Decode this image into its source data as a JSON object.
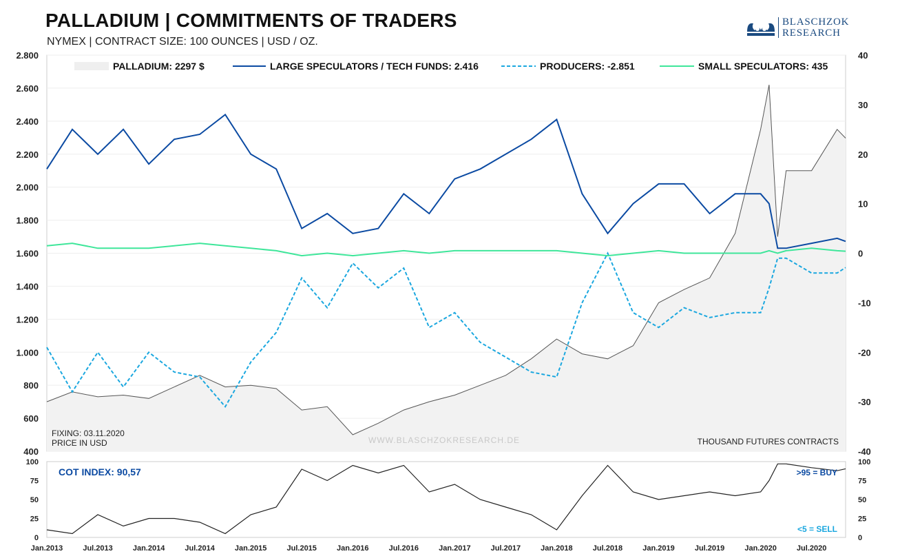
{
  "header": {
    "title": "PALLADIUM | COMMITMENTS OF TRADERS",
    "subtitle": "NYMEX | CONTRACT SIZE: 100 OUNCES | USD / OZ.",
    "logo_line1": "BLASCHZOK",
    "logo_line2": "RESEARCH"
  },
  "notes": {
    "fixing": "FIXING: 03.11.2020",
    "price_unit": "PRICE IN USD",
    "watermark": "WWW.BLASCHZOKRESEARCH.DE",
    "right_unit": "THOUSAND  FUTURES  CONTRACTS",
    "cot_index": "COT INDEX: 90,57",
    "buy_signal": ">95 = BUY",
    "sell_signal": "<5 = SELL"
  },
  "colors": {
    "price_line": "#555555",
    "price_fill": "#f2f2f2",
    "large_speculators": "#0b4aa2",
    "producers": "#1aa7df",
    "small_speculators": "#3ee69a",
    "cot_line": "#222222",
    "buy_text": "#0b4aa2",
    "sell_text": "#1aa7df"
  },
  "chart_data": [
    {
      "type": "line",
      "x_range": [
        "2013-01",
        "2020-11"
      ],
      "x_ticks": [
        "Jan.2013",
        "Jul.2013",
        "Jan.2014",
        "Jul.2014",
        "Jan.2015",
        "Jul.2015",
        "Jan.2016",
        "Jul.2016",
        "Jan.2017",
        "Jul.2017",
        "Jan.2018",
        "Jul.2018",
        "Jan.2019",
        "Jul.2019",
        "Jan.2020",
        "Jul.2020"
      ],
      "left_axis": {
        "range": [
          400,
          2800
        ],
        "ticks": [
          "400",
          "600",
          "800",
          "1.000",
          "1.200",
          "1.400",
          "1.600",
          "1.800",
          "2.000",
          "2.200",
          "2.400",
          "2.600",
          "2.800"
        ]
      },
      "right_axis": {
        "range": [
          -40,
          40
        ],
        "ticks": [
          "-40",
          "-30",
          "-20",
          "-10",
          "0",
          "10",
          "20",
          "30",
          "40"
        ]
      },
      "series": [
        {
          "name": "PALLADIUM: 2297 $",
          "axis": "left",
          "style": "area",
          "points": [
            [
              "2013-01",
              700
            ],
            [
              "2013-04",
              760
            ],
            [
              "2013-07",
              730
            ],
            [
              "2013-10",
              740
            ],
            [
              "2014-01",
              720
            ],
            [
              "2014-04",
              790
            ],
            [
              "2014-07",
              860
            ],
            [
              "2014-10",
              790
            ],
            [
              "2015-01",
              800
            ],
            [
              "2015-04",
              780
            ],
            [
              "2015-07",
              650
            ],
            [
              "2015-10",
              670
            ],
            [
              "2016-01",
              500
            ],
            [
              "2016-04",
              570
            ],
            [
              "2016-07",
              650
            ],
            [
              "2016-10",
              700
            ],
            [
              "2017-01",
              740
            ],
            [
              "2017-04",
              800
            ],
            [
              "2017-07",
              860
            ],
            [
              "2017-10",
              960
            ],
            [
              "2018-01",
              1080
            ],
            [
              "2018-04",
              990
            ],
            [
              "2018-07",
              960
            ],
            [
              "2018-10",
              1040
            ],
            [
              "2019-01",
              1300
            ],
            [
              "2019-04",
              1380
            ],
            [
              "2019-07",
              1450
            ],
            [
              "2019-10",
              1720
            ],
            [
              "2020-01",
              2350
            ],
            [
              "2020-02",
              2620
            ],
            [
              "2020-03",
              1700
            ],
            [
              "2020-04",
              2100
            ],
            [
              "2020-07",
              2100
            ],
            [
              "2020-10",
              2350
            ],
            [
              "2020-11",
              2297
            ]
          ]
        },
        {
          "name": "LARGE SPECULATORS / TECH FUNDS: 2.416",
          "axis": "right",
          "style": "solid",
          "points": [
            [
              "2013-01",
              17
            ],
            [
              "2013-04",
              25
            ],
            [
              "2013-07",
              20
            ],
            [
              "2013-10",
              25
            ],
            [
              "2014-01",
              18
            ],
            [
              "2014-04",
              23
            ],
            [
              "2014-07",
              24
            ],
            [
              "2014-10",
              28
            ],
            [
              "2015-01",
              20
            ],
            [
              "2015-04",
              17
            ],
            [
              "2015-07",
              5
            ],
            [
              "2015-10",
              8
            ],
            [
              "2016-01",
              4
            ],
            [
              "2016-04",
              5
            ],
            [
              "2016-07",
              12
            ],
            [
              "2016-10",
              8
            ],
            [
              "2017-01",
              15
            ],
            [
              "2017-04",
              17
            ],
            [
              "2017-07",
              20
            ],
            [
              "2017-10",
              23
            ],
            [
              "2018-01",
              27
            ],
            [
              "2018-04",
              12
            ],
            [
              "2018-07",
              4
            ],
            [
              "2018-10",
              10
            ],
            [
              "2019-01",
              14
            ],
            [
              "2019-04",
              14
            ],
            [
              "2019-07",
              8
            ],
            [
              "2019-10",
              12
            ],
            [
              "2020-01",
              12
            ],
            [
              "2020-02",
              10
            ],
            [
              "2020-03",
              1
            ],
            [
              "2020-04",
              1
            ],
            [
              "2020-07",
              2
            ],
            [
              "2020-10",
              3
            ],
            [
              "2020-11",
              2.4
            ]
          ]
        },
        {
          "name": "PRODUCERS: -2.851",
          "axis": "right",
          "style": "dashed",
          "points": [
            [
              "2013-01",
              -19
            ],
            [
              "2013-04",
              -28
            ],
            [
              "2013-07",
              -20
            ],
            [
              "2013-10",
              -27
            ],
            [
              "2014-01",
              -20
            ],
            [
              "2014-04",
              -24
            ],
            [
              "2014-07",
              -25
            ],
            [
              "2014-10",
              -31
            ],
            [
              "2015-01",
              -22
            ],
            [
              "2015-04",
              -16
            ],
            [
              "2015-07",
              -5
            ],
            [
              "2015-10",
              -11
            ],
            [
              "2016-01",
              -2
            ],
            [
              "2016-04",
              -7
            ],
            [
              "2016-07",
              -3
            ],
            [
              "2016-10",
              -15
            ],
            [
              "2017-01",
              -12
            ],
            [
              "2017-04",
              -18
            ],
            [
              "2017-07",
              -21
            ],
            [
              "2017-10",
              -24
            ],
            [
              "2018-01",
              -25
            ],
            [
              "2018-04",
              -10
            ],
            [
              "2018-07",
              0
            ],
            [
              "2018-10",
              -12
            ],
            [
              "2019-01",
              -15
            ],
            [
              "2019-04",
              -11
            ],
            [
              "2019-07",
              -13
            ],
            [
              "2019-10",
              -12
            ],
            [
              "2020-01",
              -12
            ],
            [
              "2020-02",
              -7
            ],
            [
              "2020-03",
              -1
            ],
            [
              "2020-04",
              -1
            ],
            [
              "2020-07",
              -4
            ],
            [
              "2020-10",
              -4
            ],
            [
              "2020-11",
              -2.9
            ]
          ]
        },
        {
          "name": "SMALL SPECULATORS: 435",
          "axis": "right",
          "style": "solid",
          "points": [
            [
              "2013-01",
              1.5
            ],
            [
              "2013-04",
              2
            ],
            [
              "2013-07",
              1
            ],
            [
              "2013-10",
              1
            ],
            [
              "2014-01",
              1
            ],
            [
              "2014-04",
              1.5
            ],
            [
              "2014-07",
              2
            ],
            [
              "2014-10",
              1.5
            ],
            [
              "2015-01",
              1
            ],
            [
              "2015-04",
              0.5
            ],
            [
              "2015-07",
              -0.5
            ],
            [
              "2015-10",
              0
            ],
            [
              "2016-01",
              -0.5
            ],
            [
              "2016-04",
              0
            ],
            [
              "2016-07",
              0.5
            ],
            [
              "2016-10",
              0
            ],
            [
              "2017-01",
              0.5
            ],
            [
              "2017-04",
              0.5
            ],
            [
              "2017-07",
              0.5
            ],
            [
              "2017-10",
              0.5
            ],
            [
              "2018-01",
              0.5
            ],
            [
              "2018-04",
              0
            ],
            [
              "2018-07",
              -0.5
            ],
            [
              "2018-10",
              0
            ],
            [
              "2019-01",
              0.5
            ],
            [
              "2019-04",
              0
            ],
            [
              "2019-07",
              0
            ],
            [
              "2019-10",
              0
            ],
            [
              "2020-01",
              0
            ],
            [
              "2020-02",
              0.5
            ],
            [
              "2020-03",
              0
            ],
            [
              "2020-04",
              0.5
            ],
            [
              "2020-07",
              1
            ],
            [
              "2020-10",
              0.5
            ],
            [
              "2020-11",
              0.4
            ]
          ]
        }
      ]
    },
    {
      "type": "line",
      "title": "COT INDEX: 90,57",
      "x_range": [
        "2013-01",
        "2020-11"
      ],
      "y_range": [
        0,
        100
      ],
      "y_ticks": [
        "0",
        "25",
        "50",
        "75",
        "100"
      ],
      "series": [
        {
          "name": "COT INDEX",
          "points": [
            [
              "2013-01",
              10
            ],
            [
              "2013-04",
              5
            ],
            [
              "2013-07",
              30
            ],
            [
              "2013-10",
              15
            ],
            [
              "2014-01",
              25
            ],
            [
              "2014-04",
              25
            ],
            [
              "2014-07",
              20
            ],
            [
              "2014-10",
              5
            ],
            [
              "2015-01",
              30
            ],
            [
              "2015-04",
              40
            ],
            [
              "2015-07",
              90
            ],
            [
              "2015-10",
              75
            ],
            [
              "2016-01",
              95
            ],
            [
              "2016-04",
              85
            ],
            [
              "2016-07",
              95
            ],
            [
              "2016-10",
              60
            ],
            [
              "2017-01",
              70
            ],
            [
              "2017-04",
              50
            ],
            [
              "2017-07",
              40
            ],
            [
              "2017-10",
              30
            ],
            [
              "2018-01",
              10
            ],
            [
              "2018-04",
              55
            ],
            [
              "2018-07",
              95
            ],
            [
              "2018-10",
              60
            ],
            [
              "2019-01",
              50
            ],
            [
              "2019-04",
              55
            ],
            [
              "2019-07",
              60
            ],
            [
              "2019-10",
              55
            ],
            [
              "2020-01",
              60
            ],
            [
              "2020-02",
              75
            ],
            [
              "2020-03",
              97
            ],
            [
              "2020-04",
              97
            ],
            [
              "2020-07",
              92
            ],
            [
              "2020-10",
              88
            ],
            [
              "2020-11",
              90.57
            ]
          ]
        }
      ]
    }
  ]
}
